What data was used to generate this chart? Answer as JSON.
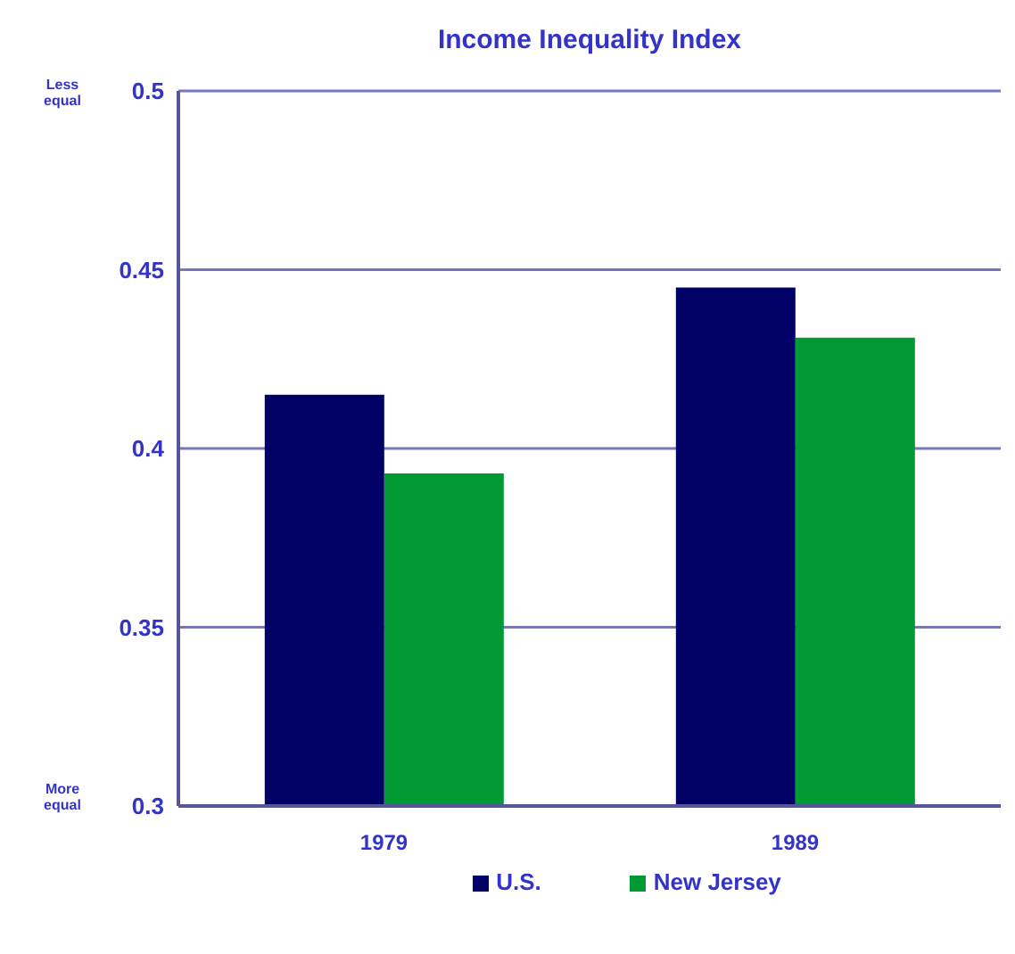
{
  "chart_data": {
    "type": "bar",
    "title": "Income Inequality Index",
    "categories": [
      "1979",
      "1989"
    ],
    "series": [
      {
        "name": "U.S.",
        "color": "#000066",
        "values": [
          0.415,
          0.445
        ]
      },
      {
        "name": "New Jersey",
        "color": "#009933",
        "values": [
          0.393,
          0.431
        ]
      }
    ],
    "ylim": [
      0.3,
      0.5
    ],
    "yticks": [
      0.3,
      0.35,
      0.4,
      0.45,
      0.5
    ],
    "grid": "y",
    "legend": "bottom",
    "annotations": [
      "Less equal",
      "More equal"
    ]
  }
}
